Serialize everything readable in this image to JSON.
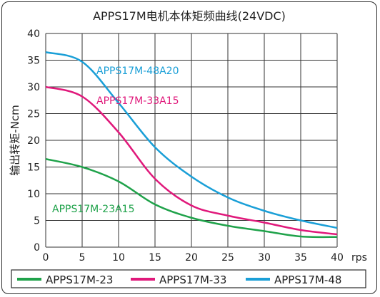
{
  "chart_data": {
    "type": "line",
    "title": "APPS17M电机本体矩频曲线(24VDC)",
    "xlabel": "rps",
    "ylabel": "输出转矩-Ncm",
    "xlim": [
      0,
      40
    ],
    "ylim": [
      0,
      40
    ],
    "x_ticks": [
      0,
      5,
      10,
      15,
      20,
      25,
      30,
      35,
      40
    ],
    "y_ticks": [
      0,
      5,
      10,
      15,
      20,
      25,
      30,
      35,
      40
    ],
    "grid": true,
    "legend_position": "bottom",
    "series": [
      {
        "name": "APPS17M-23",
        "color": "#1fa24a",
        "annotation": "APPS17M-23A15",
        "x": [
          0,
          5,
          10,
          15,
          20,
          25,
          30,
          35,
          40
        ],
        "y": [
          16.5,
          15,
          12.3,
          8,
          5.5,
          4,
          3,
          2,
          1.9
        ]
      },
      {
        "name": "APPS17M-33",
        "color": "#e0197b",
        "annotation": "APPS17M-33A15",
        "x": [
          0,
          5,
          10,
          15,
          20,
          25,
          30,
          35,
          40
        ],
        "y": [
          30,
          28.2,
          21.5,
          12.8,
          7.8,
          5.9,
          4.6,
          3.2,
          2.4
        ]
      },
      {
        "name": "APPS17M-48",
        "color": "#1a9fd7",
        "annotation": "APPS17M-48A20",
        "x": [
          0,
          5,
          10,
          15,
          20,
          25,
          30,
          35,
          40
        ],
        "y": [
          36.5,
          34.7,
          27,
          18.7,
          13.2,
          9.3,
          6.8,
          5,
          3.6
        ]
      }
    ]
  }
}
